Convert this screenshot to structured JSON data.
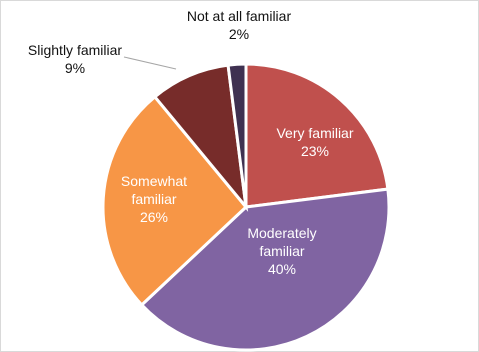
{
  "chart_data": {
    "type": "pie",
    "title": "",
    "start": "12 o'clock, clockwise",
    "slices": [
      {
        "label": "Very familiar",
        "lines": [
          "Very familiar"
        ],
        "value": 23,
        "value_label": "23%",
        "color": "#c0504d",
        "label_position": "inside"
      },
      {
        "label": "Moderately familiar",
        "lines": [
          "Moderately",
          "familiar"
        ],
        "value": 40,
        "value_label": "40%",
        "color": "#8064a2",
        "label_position": "inside"
      },
      {
        "label": "Somewhat familiar",
        "lines": [
          "Somewhat",
          "familiar"
        ],
        "value": 26,
        "value_label": "26%",
        "color": "#f79646",
        "label_position": "inside"
      },
      {
        "label": "Slightly familiar",
        "lines": [
          "Slightly familiar"
        ],
        "value": 9,
        "value_label": "9%",
        "color": "#772c2a",
        "label_position": "outside"
      },
      {
        "label": "Not at all familiar",
        "lines": [
          "Not at all familiar"
        ],
        "value": 2,
        "value_label": "2%",
        "color": "#3f3151",
        "label_position": "outside"
      }
    ],
    "legend": "none"
  }
}
